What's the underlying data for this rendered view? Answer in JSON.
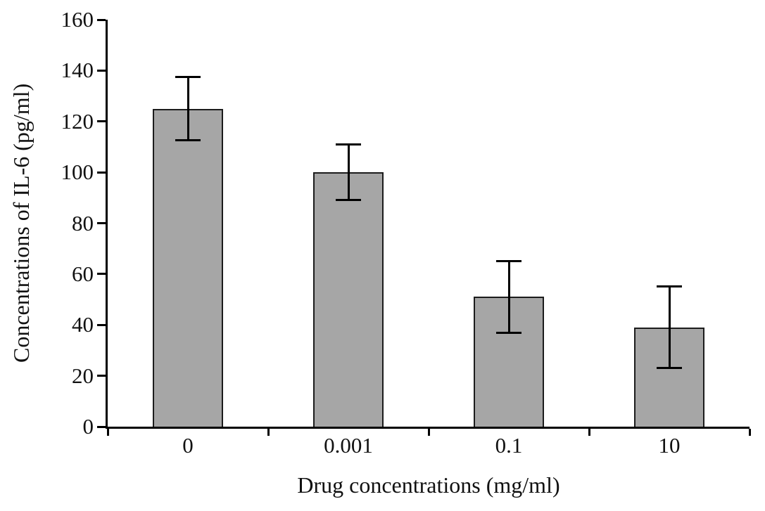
{
  "chart_data": {
    "type": "bar",
    "title": "",
    "xlabel": "Drug concentrations (mg/ml)",
    "ylabel": "Concentrations of IL-6 (pg/ml)",
    "categories": [
      "0",
      "0.001",
      "0.1",
      "10"
    ],
    "values": [
      125,
      100,
      51,
      39
    ],
    "errors": [
      12.5,
      11,
      14,
      16
    ],
    "ylim": [
      0,
      160
    ],
    "ytick_step": 20,
    "grid": false,
    "legend_position": "none",
    "bar_color": "#a6a6a6",
    "bar_border_color": "#1c1c1c",
    "axis_color": "#000000"
  }
}
